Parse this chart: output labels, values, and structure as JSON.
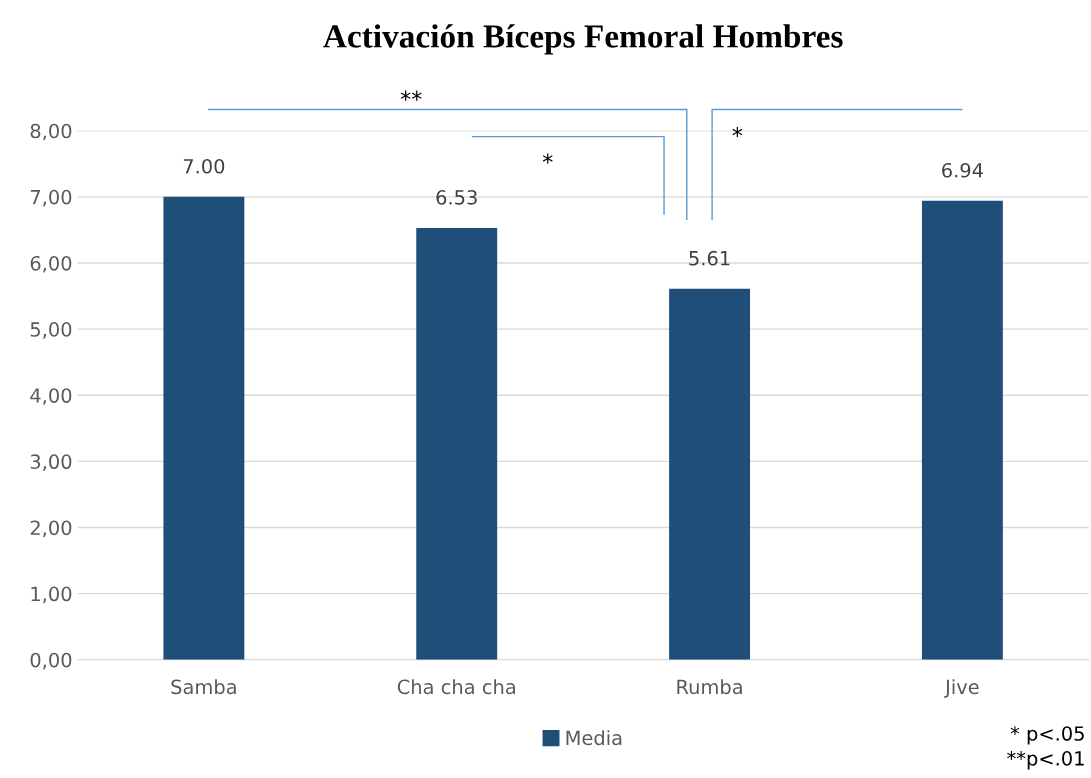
{
  "chart_data": {
    "type": "bar",
    "title": "Activación Bíceps Femoral Hombres",
    "categories": [
      "Samba",
      "Cha cha cha",
      "Rumba",
      "Jive"
    ],
    "series": [
      {
        "name": "Media",
        "color": "#1f4e79",
        "values": [
          7.0,
          6.53,
          5.61,
          6.94
        ],
        "value_labels": [
          "7.00",
          "6.53",
          "5.61",
          "6.94"
        ]
      }
    ],
    "ylim": [
      0,
      8
    ],
    "yticks": [
      {
        "value": 0,
        "label": "0,00"
      },
      {
        "value": 1,
        "label": "1,00"
      },
      {
        "value": 2,
        "label": "2,00"
      },
      {
        "value": 3,
        "label": "3,00"
      },
      {
        "value": 4,
        "label": "4,00"
      },
      {
        "value": 5,
        "label": "5,00"
      },
      {
        "value": 6,
        "label": "6,00"
      },
      {
        "value": 7,
        "label": "7,00"
      },
      {
        "value": 8,
        "label": "8,00"
      }
    ],
    "grid": "y",
    "legend": "bottom",
    "annotations": [
      "**",
      "*",
      "*",
      "* p<.05",
      "**p<.01"
    ]
  }
}
